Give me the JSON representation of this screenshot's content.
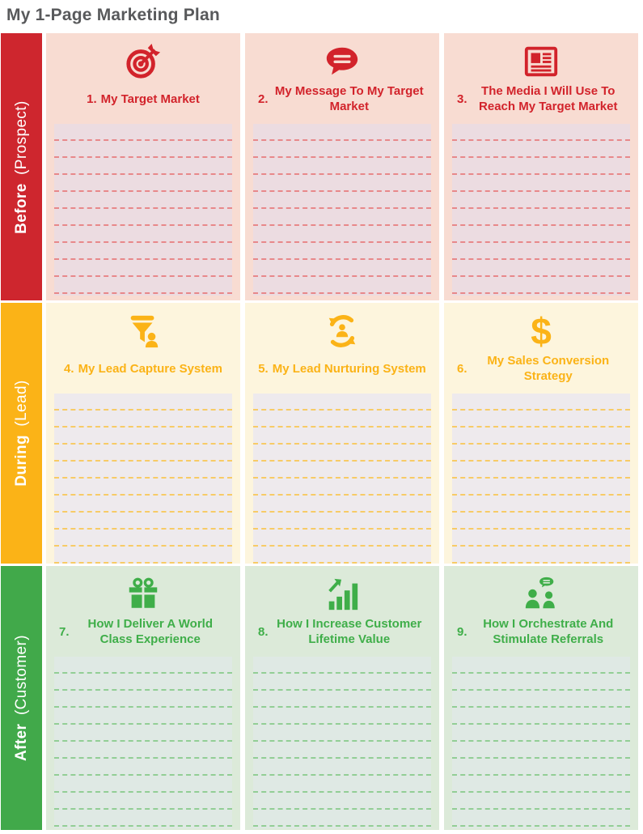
{
  "page": {
    "title": "My 1-Page Marketing Plan"
  },
  "rows": [
    {
      "sidebar": {
        "phase": "Before",
        "qualifier": "(Prospect)"
      },
      "colors": {
        "band": "#ce262e",
        "accent": "#d2232b",
        "cell_bg": "#f8dcd2",
        "panel_bg": "#ecdce1",
        "dash": "#e8888a"
      },
      "cells": [
        {
          "num": "1.",
          "title": "My Target Market",
          "icon": "target-icon"
        },
        {
          "num": "2.",
          "title": "My Message To My Target Market",
          "icon": "speech-bubble-icon"
        },
        {
          "num": "3.",
          "title": "The Media I Will Use To Reach My Target Market",
          "icon": "newspaper-icon"
        }
      ]
    },
    {
      "sidebar": {
        "phase": "During",
        "qualifier": "(Lead)"
      },
      "colors": {
        "band": "#fbb317",
        "accent": "#fbb317",
        "cell_bg": "#fdf5dd",
        "panel_bg": "#eeeaed",
        "dash": "#f7cb66"
      },
      "cells": [
        {
          "num": "4.",
          "title": "My Lead Capture System",
          "icon": "funnel-icon"
        },
        {
          "num": "5.",
          "title": "My Lead Nurturing System",
          "icon": "nurture-cycle-icon"
        },
        {
          "num": "6.",
          "title": "My Sales Conversion Strategy",
          "icon": "dollar-icon"
        }
      ]
    },
    {
      "sidebar": {
        "phase": "After",
        "qualifier": "(Customer)"
      },
      "colors": {
        "band": "#41a94a",
        "accent": "#3fae49",
        "cell_bg": "#dcead9",
        "panel_bg": "#dfe9e4",
        "dash": "#92ce95"
      },
      "cells": [
        {
          "num": "7.",
          "title": "How I Deliver A World Class Experience",
          "icon": "gift-icon"
        },
        {
          "num": "8.",
          "title": "How I Increase Customer Lifetime Value",
          "icon": "growth-chart-icon"
        },
        {
          "num": "9.",
          "title": "How I Orchestrate And Stimulate Referrals",
          "icon": "referrals-icon"
        }
      ]
    }
  ]
}
